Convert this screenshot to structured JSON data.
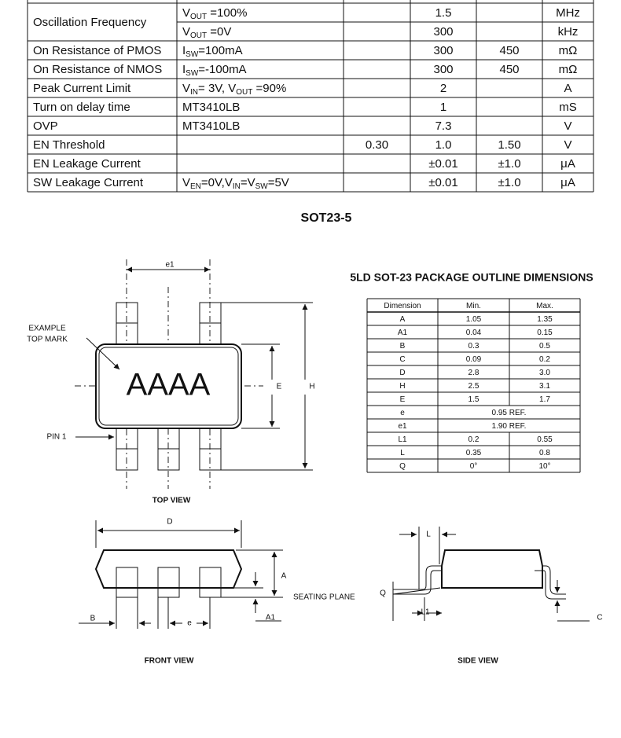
{
  "electrical_table": {
    "rows": [
      {
        "parameter": "Oscillation Frequency",
        "lines": [
          {
            "conditions": [
              {
                "text": "V"
              },
              {
                "sub": "OUT"
              },
              {
                "text": " =100%"
              }
            ],
            "typ": "1.5",
            "unit": "MHz"
          },
          {
            "conditions": [
              {
                "text": "V"
              },
              {
                "sub": "OUT"
              },
              {
                "text": " =0V"
              }
            ],
            "typ": "300",
            "unit": "kHz"
          }
        ]
      },
      {
        "parameter": "On Resistance of PMOS",
        "lines": [
          {
            "conditions": [
              {
                "text": "I"
              },
              {
                "sub": "SW"
              },
              {
                "text": "=100mA"
              }
            ],
            "typ": "300",
            "max": "450",
            "unit": "mΩ"
          }
        ]
      },
      {
        "parameter": "On Resistance of NMOS",
        "lines": [
          {
            "conditions": [
              {
                "text": "I"
              },
              {
                "sub": "SW"
              },
              {
                "text": "=-100mA"
              }
            ],
            "typ": "300",
            "max": "450",
            "unit": "mΩ"
          }
        ]
      },
      {
        "parameter": "Peak Current Limit",
        "lines": [
          {
            "conditions": [
              {
                "text": "V"
              },
              {
                "sub": "IN"
              },
              {
                "text": "= 3V, V"
              },
              {
                "sub": "OUT"
              },
              {
                "text": " =90%"
              }
            ],
            "typ": "2",
            "unit": "A"
          }
        ]
      },
      {
        "parameter": "Turn on delay time",
        "lines": [
          {
            "conditions": [
              {
                "text": "MT3410LB"
              }
            ],
            "typ": "1",
            "unit": "mS"
          }
        ]
      },
      {
        "parameter": "OVP",
        "lines": [
          {
            "conditions": [
              {
                "text": "MT3410LB"
              }
            ],
            "typ": "7.3",
            "unit": "V"
          }
        ]
      },
      {
        "parameter": "EN Threshold",
        "lines": [
          {
            "min": "0.30",
            "typ": "1.0",
            "max": "1.50",
            "unit": "V"
          }
        ]
      },
      {
        "parameter": "EN Leakage Current",
        "lines": [
          {
            "typ": "±0.01",
            "max": "±1.0",
            "unit": "μA"
          }
        ]
      },
      {
        "parameter": "SW Leakage Current",
        "lines": [
          {
            "conditions": [
              {
                "text": "V"
              },
              {
                "sub": "EN"
              },
              {
                "text": "=0V,V"
              },
              {
                "sub": "IN"
              },
              {
                "text": "=V"
              },
              {
                "sub": "SW"
              },
              {
                "text": "=5V"
              }
            ],
            "typ": "±0.01",
            "max": "±1.0",
            "unit": "μA"
          }
        ]
      }
    ]
  },
  "package": {
    "title": "SOT23-5",
    "labels": {
      "e1": "e1",
      "example_top_mark": [
        "EXAMPLE",
        "TOP MARK"
      ],
      "mark": "AAAA",
      "pin1": "PIN 1",
      "E": "E",
      "H": "H",
      "top_view": "TOP VIEW",
      "D": "D",
      "A": "A",
      "seating_plane": "SEATING PLANE",
      "B": "B",
      "e": "e",
      "A1": "A1",
      "front_view": "FRONT VIEW",
      "L": "L",
      "Q": "Q",
      "L1": "L1",
      "C": "C",
      "side_view": "SIDE VIEW"
    },
    "dimensions": {
      "title": "5LD SOT-23 PACKAGE OUTLINE DIMENSIONS",
      "header": [
        "Dimension",
        "Min.",
        "Max."
      ],
      "rows": [
        [
          "A",
          "1.05",
          "1.35"
        ],
        [
          "A1",
          "0.04",
          "0.15"
        ],
        [
          "B",
          "0.3",
          "0.5"
        ],
        [
          "C",
          "0.09",
          "0.2"
        ],
        [
          "D",
          "2.8",
          "3.0"
        ],
        [
          "H",
          "2.5",
          "3.1"
        ],
        [
          "E",
          "1.5",
          "1.7"
        ],
        [
          "e",
          "0.95 REF."
        ],
        [
          "e1",
          "1.90 REF."
        ],
        [
          "L1",
          "0.2",
          "0.55"
        ],
        [
          "L",
          "0.35",
          "0.8"
        ],
        [
          "Q",
          "0°",
          "10°"
        ]
      ]
    }
  }
}
